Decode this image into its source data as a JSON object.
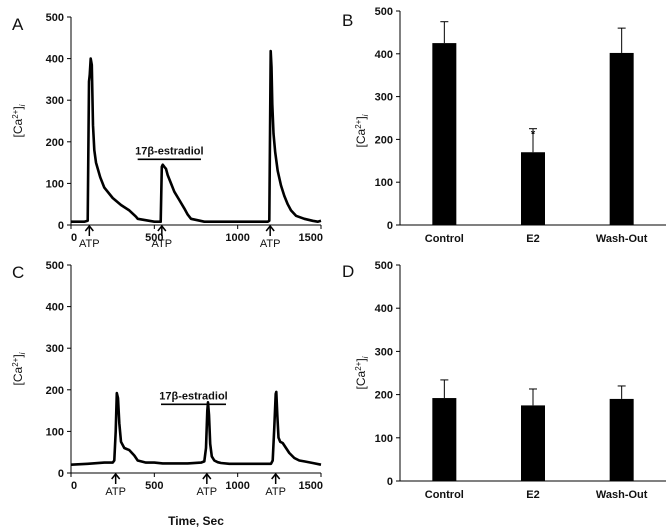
{
  "chart_data": [
    {
      "panel": "A",
      "type": "line",
      "ylim": [
        0,
        500
      ],
      "xlim": [
        0,
        1500
      ],
      "yticks": [
        0,
        100,
        200,
        300,
        400,
        500
      ],
      "xticks": [
        0,
        500,
        1000,
        1500
      ],
      "ylabel": "[Ca2+]i",
      "series": [
        {
          "x": [
            0,
            40,
            80,
            100,
            108,
            112,
            118,
            125,
            132,
            140,
            150,
            175,
            200,
            250,
            300,
            350,
            390,
            400,
            500,
            520,
            530,
            538,
            545,
            550,
            560,
            570,
            580,
            600,
            620,
            650,
            680,
            700,
            720,
            800,
            900,
            1000,
            1050,
            1100,
            1180,
            1190,
            1198,
            1203,
            1208,
            1215,
            1225,
            1240,
            1260,
            1280,
            1300,
            1320,
            1350,
            1400,
            1450,
            1480,
            1500
          ],
          "values": [
            8,
            8,
            8,
            10,
            345,
            360,
            400,
            385,
            240,
            180,
            150,
            115,
            90,
            65,
            48,
            35,
            20,
            15,
            8,
            8,
            8,
            8,
            140,
            145,
            140,
            135,
            120,
            100,
            80,
            60,
            40,
            25,
            15,
            8,
            8,
            8,
            8,
            8,
            8,
            10,
            418,
            380,
            290,
            220,
            175,
            130,
            95,
            70,
            50,
            35,
            22,
            15,
            10,
            8,
            10
          ]
        }
      ],
      "annotations": [
        {
          "text": "ATP",
          "x": 110
        },
        {
          "text": "ATP",
          "x": 545
        },
        {
          "text": "ATP",
          "x": 1195
        },
        {
          "text": "17β-estradiol",
          "x_start": 400,
          "x_end": 780,
          "y": 158
        }
      ]
    },
    {
      "panel": "B",
      "type": "bar",
      "ylim": [
        0,
        500
      ],
      "yticks": [
        0,
        100,
        200,
        300,
        400,
        500
      ],
      "ylabel": "[Ca2+]i",
      "categories": [
        "Control",
        "E2",
        "Wash-Out"
      ],
      "values": [
        425,
        170,
        402
      ],
      "errors": [
        50,
        55,
        58
      ],
      "marks": [
        "",
        "*",
        ""
      ]
    },
    {
      "panel": "C",
      "type": "line",
      "ylim": [
        0,
        500
      ],
      "xlim": [
        0,
        1500
      ],
      "yticks": [
        0,
        100,
        200,
        300,
        400,
        500
      ],
      "xticks": [
        0,
        500,
        1000,
        1500
      ],
      "ylabel": "[Ca2+]i",
      "xlabel": "Time, Sec",
      "series": [
        {
          "x": [
            0,
            100,
            200,
            250,
            260,
            268,
            275,
            282,
            290,
            300,
            320,
            350,
            380,
            400,
            450,
            500,
            550,
            600,
            700,
            780,
            800,
            810,
            818,
            822,
            828,
            835,
            845,
            860,
            880,
            900,
            950,
            1000,
            1050,
            1100,
            1200,
            1210,
            1220,
            1228,
            1232,
            1238,
            1245,
            1255,
            1270,
            1290,
            1310,
            1340,
            1370,
            1400,
            1450,
            1500
          ],
          "values": [
            20,
            22,
            25,
            25,
            30,
            100,
            192,
            180,
            120,
            75,
            60,
            55,
            42,
            30,
            25,
            25,
            23,
            23,
            23,
            25,
            28,
            60,
            150,
            170,
            140,
            70,
            40,
            30,
            26,
            24,
            22,
            22,
            22,
            22,
            22,
            30,
            110,
            190,
            195,
            140,
            85,
            75,
            72,
            60,
            48,
            36,
            30,
            28,
            24,
            20
          ]
        }
      ],
      "annotations": [
        {
          "text": "ATP",
          "x": 268
        },
        {
          "text": "ATP",
          "x": 815
        },
        {
          "text": "ATP",
          "x": 1228
        },
        {
          "text": "17β-estradiol",
          "x_start": 540,
          "x_end": 930,
          "y": 165
        }
      ]
    },
    {
      "panel": "D",
      "type": "bar",
      "ylim": [
        0,
        500
      ],
      "yticks": [
        0,
        100,
        200,
        300,
        400,
        500
      ],
      "ylabel": "[Ca2+]i",
      "categories": [
        "Control",
        "E2",
        "Wash-Out"
      ],
      "values": [
        192,
        175,
        190
      ],
      "errors": [
        42,
        38,
        30
      ],
      "marks": [
        "",
        "",
        ""
      ]
    }
  ]
}
